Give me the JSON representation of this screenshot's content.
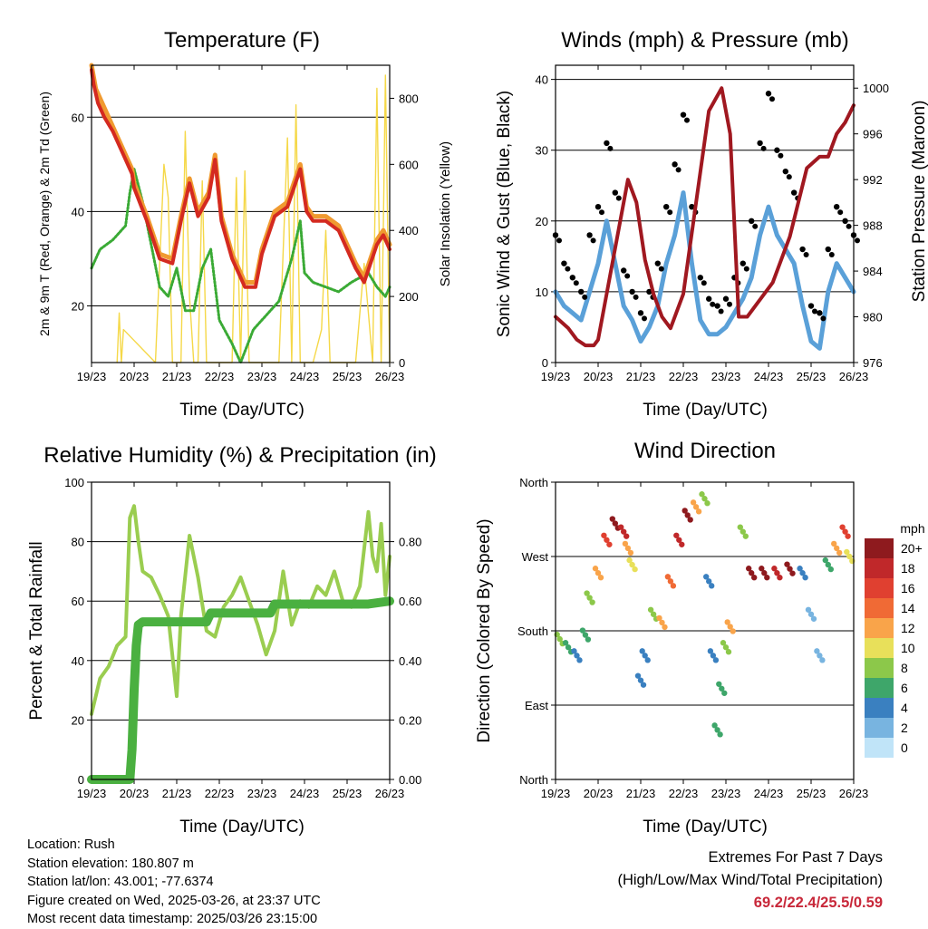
{
  "colors": {
    "temp2m": "#d42a20",
    "temp9m": "#f09a30",
    "dewpoint": "#3aaa35",
    "solar": "#f5d848",
    "wind": "#5aa0d8",
    "gust": "#000000",
    "pressure": "#a01820",
    "rh": "#9acd50",
    "precip": "#4ab040",
    "extremes": "#c8283a"
  },
  "charts": {
    "temperature": {
      "title": "Temperature (F)",
      "xlabel": "Time (Day/UTC)",
      "ylabel": "2m & 9m T (Red, Orange) & 2m Td (Green)",
      "ylabel_right": "Solar Insolation (Yellow)"
    },
    "winds": {
      "title": "Winds (mph) & Pressure (mb)",
      "xlabel": "Time (Day/UTC)",
      "ylabel": "Sonic Wind & Gust (Blue, Black)",
      "ylabel_right": "Station Pressure (Maroon)"
    },
    "humidity": {
      "title": "Relative Humidity (%) & Precipitation (in)",
      "xlabel": "Time (Day/UTC)",
      "ylabel": "Percent & Total Rainfall"
    },
    "direction": {
      "title": "Wind Direction",
      "xlabel": "Time (Day/UTC)",
      "ylabel": "Direction (Colored By Speed)",
      "colorbar_title": "mph"
    }
  },
  "chart_data": [
    {
      "type": "line",
      "x_ticks": [
        "19/23",
        "20/23",
        "21/23",
        "22/23",
        "23/23",
        "24/23",
        "25/23",
        "26/23"
      ],
      "ylim": [
        8,
        71
      ],
      "y_ticks": [
        20,
        40,
        60
      ],
      "ylim_right": [
        0,
        900
      ],
      "y_ticks_right": [
        0,
        200,
        400,
        600,
        800
      ],
      "grid": true,
      "series": [
        {
          "x": [
            0,
            0.05,
            0.15,
            0.3,
            0.5,
            0.7,
            0.95,
            1.0,
            1.3,
            1.6,
            1.9,
            2.1,
            2.3,
            2.5,
            2.75,
            2.9,
            3.05,
            3.3,
            3.6,
            3.85,
            4.0,
            4.3,
            4.6,
            4.9,
            5.05,
            5.2,
            5.5,
            5.8,
            6.05,
            6.2,
            6.4,
            6.7,
            6.85,
            7.0
          ],
          "y": [
            70,
            67,
            63,
            60,
            57,
            53,
            48,
            45,
            38,
            30,
            29,
            38,
            46,
            39,
            43,
            51,
            38,
            30,
            24,
            24,
            31,
            39,
            41,
            49,
            40,
            38,
            38,
            36,
            31,
            28,
            25,
            33,
            35,
            32
          ]
        },
        {
          "x": [
            0,
            0.1,
            0.3,
            0.6,
            0.95,
            1.0,
            1.3,
            1.6,
            1.9,
            2.1,
            2.3,
            2.5,
            2.75,
            2.9,
            3.05,
            3.3,
            3.6,
            3.85,
            4.0,
            4.3,
            4.6,
            4.9,
            5.05,
            5.2,
            5.5,
            5.8,
            6.05,
            6.2,
            6.4,
            6.7,
            6.85,
            7.0
          ],
          "y": [
            71,
            66,
            62,
            56,
            49,
            46,
            39,
            31,
            30,
            39,
            47,
            40,
            44,
            52,
            39,
            31,
            25,
            25,
            32,
            40,
            42,
            50,
            41,
            39,
            39,
            37,
            32,
            29,
            26,
            34,
            36,
            33
          ]
        },
        {
          "x": [
            0,
            0.2,
            0.5,
            0.8,
            0.9,
            1.0,
            1.2,
            1.4,
            1.6,
            1.8,
            2.0,
            2.2,
            2.4,
            2.6,
            2.8,
            3.0,
            3.3,
            3.5,
            3.8,
            4.1,
            4.4,
            4.7,
            4.9,
            5.0,
            5.2,
            5.5,
            5.8,
            6.1,
            6.3,
            6.5,
            6.7,
            6.9,
            7.0
          ],
          "y": [
            28,
            32,
            34,
            37,
            44,
            49,
            42,
            33,
            24,
            22,
            28,
            19,
            19,
            28,
            32,
            17,
            12,
            8,
            15,
            18,
            21,
            30,
            38,
            27,
            25,
            24,
            23,
            25,
            26,
            27,
            24,
            22,
            24
          ]
        },
        {
          "x": [
            0.6,
            0.65,
            0.7,
            0.75,
            1.5,
            1.7,
            1.8,
            1.9,
            2.1,
            2.2,
            2.3,
            2.4,
            2.5,
            2.6,
            2.7,
            3.0,
            3.3,
            3.4,
            3.5,
            3.6,
            3.7,
            4.0,
            4.4,
            4.6,
            4.7,
            4.8,
            4.9,
            5.2,
            5.4,
            5.5,
            5.6,
            5.8,
            6.2,
            6.4,
            6.6,
            6.7,
            6.8,
            6.85,
            6.9,
            7.0
          ],
          "y": [
            0,
            150,
            0,
            100,
            0,
            600,
            500,
            0,
            0,
            700,
            200,
            0,
            0,
            550,
            0,
            0,
            0,
            560,
            0,
            580,
            0,
            0,
            0,
            680,
            0,
            780,
            0,
            0,
            100,
            400,
            0,
            0,
            0,
            300,
            0,
            830,
            0,
            400,
            870,
            0
          ]
        }
      ]
    },
    {
      "type": "line",
      "x_ticks": [
        "19/23",
        "20/23",
        "21/23",
        "22/23",
        "23/23",
        "24/23",
        "25/23",
        "26/23"
      ],
      "ylim": [
        0,
        42
      ],
      "y_ticks": [
        0,
        10,
        20,
        30,
        40
      ],
      "ylim_right": [
        976,
        1002
      ],
      "y_ticks_right": [
        976,
        980,
        984,
        988,
        992,
        996,
        1000
      ],
      "grid": true,
      "series": [
        {
          "x": [
            0,
            0.2,
            0.4,
            0.6,
            0.8,
            1.0,
            1.2,
            1.4,
            1.6,
            1.8,
            2.0,
            2.2,
            2.4,
            2.6,
            2.8,
            3.0,
            3.2,
            3.4,
            3.6,
            3.8,
            4.0,
            4.2,
            4.4,
            4.6,
            4.8,
            5.0,
            5.2,
            5.4,
            5.6,
            5.8,
            6.0,
            6.2,
            6.4,
            6.6,
            6.8,
            7.0
          ],
          "y": [
            10,
            8,
            7,
            6,
            10,
            14,
            20,
            14,
            8,
            6,
            3,
            5,
            8,
            14,
            18,
            24,
            14,
            6,
            4,
            4,
            5,
            7,
            9,
            12,
            18,
            22,
            18,
            16,
            14,
            8,
            3,
            2,
            10,
            14,
            12,
            10
          ]
        },
        {
          "x": [
            0,
            0.2,
            0.4,
            0.6,
            0.8,
            1.0,
            1.2,
            1.4,
            1.6,
            1.8,
            2.0,
            2.2,
            2.4,
            2.6,
            2.8,
            3.0,
            3.2,
            3.4,
            3.6,
            3.8,
            4.0,
            4.2,
            4.4,
            4.6,
            4.8,
            5.0,
            5.2,
            5.4,
            5.6,
            5.8,
            6.0,
            6.2,
            6.4,
            6.6,
            6.8,
            7.0
          ],
          "y": [
            18,
            14,
            12,
            10,
            18,
            22,
            31,
            24,
            13,
            10,
            7,
            10,
            14,
            22,
            28,
            35,
            22,
            12,
            9,
            8,
            9,
            12,
            14,
            20,
            31,
            38,
            30,
            27,
            24,
            16,
            8,
            7,
            16,
            22,
            20,
            18
          ]
        },
        {
          "x": [
            0,
            0.3,
            0.5,
            0.7,
            0.9,
            1.0,
            1.2,
            1.5,
            1.7,
            1.9,
            2.1,
            2.3,
            2.5,
            2.7,
            3.0,
            3.3,
            3.6,
            3.9,
            4.1,
            4.3,
            4.5,
            4.7,
            4.9,
            5.1,
            5.3,
            5.5,
            5.7,
            5.9,
            6.2,
            6.4,
            6.6,
            6.8,
            7.0
          ],
          "y": [
            980,
            979,
            978,
            977.5,
            977.5,
            978,
            982,
            988,
            992,
            990,
            985,
            982,
            980,
            979,
            982,
            990,
            998,
            1000,
            996,
            980,
            980,
            981,
            982,
            983,
            985,
            987,
            990,
            993,
            994,
            994,
            996,
            997,
            998.5
          ]
        }
      ]
    },
    {
      "type": "line",
      "x_ticks": [
        "19/23",
        "20/23",
        "21/23",
        "22/23",
        "23/23",
        "24/23",
        "25/23",
        "26/23"
      ],
      "ylim": [
        0,
        100
      ],
      "y_ticks": [
        0,
        20,
        40,
        60,
        80,
        100
      ],
      "ylim_right": [
        0,
        1.0
      ],
      "y_ticks_right": [
        "0.00",
        "0.20",
        "0.40",
        "0.60",
        "0.80"
      ],
      "grid": true,
      "series": [
        {
          "x": [
            0,
            0.2,
            0.4,
            0.6,
            0.8,
            0.9,
            1.0,
            1.1,
            1.2,
            1.4,
            1.6,
            1.8,
            2.0,
            2.1,
            2.3,
            2.5,
            2.7,
            2.9,
            3.1,
            3.3,
            3.5,
            3.7,
            3.9,
            4.1,
            4.3,
            4.5,
            4.7,
            4.9,
            5.1,
            5.3,
            5.5,
            5.7,
            5.9,
            6.1,
            6.3,
            6.5,
            6.6,
            6.7,
            6.8,
            6.9,
            7.0
          ],
          "y": [
            22,
            34,
            38,
            45,
            48,
            88,
            92,
            80,
            70,
            68,
            62,
            55,
            28,
            55,
            82,
            68,
            50,
            48,
            58,
            62,
            68,
            60,
            52,
            42,
            50,
            70,
            52,
            60,
            58,
            65,
            62,
            70,
            60,
            58,
            65,
            90,
            75,
            70,
            86,
            62,
            75
          ]
        },
        {
          "x": [
            0,
            0.9,
            0.95,
            1.0,
            1.05,
            1.1,
            1.2,
            1.5,
            2.0,
            2.5,
            2.7,
            2.8,
            3.0,
            3.5,
            4.0,
            4.2,
            4.3,
            4.5,
            5.0,
            5.5,
            6.0,
            6.5,
            7.0
          ],
          "y": [
            0,
            0,
            0.1,
            0.3,
            0.45,
            0.52,
            0.53,
            0.53,
            0.53,
            0.53,
            0.53,
            0.56,
            0.56,
            0.56,
            0.56,
            0.56,
            0.59,
            0.59,
            0.59,
            0.59,
            0.59,
            0.59,
            0.6
          ]
        }
      ]
    },
    {
      "type": "scatter",
      "x_ticks": [
        "19/23",
        "20/23",
        "21/23",
        "22/23",
        "23/23",
        "24/23",
        "25/23",
        "26/23"
      ],
      "y_ticks": [
        "North",
        "East",
        "South",
        "West",
        "North"
      ],
      "ylim": [
        0,
        360
      ],
      "colorbar": {
        "title": "mph",
        "labels": [
          "20+",
          "18",
          "16",
          "14",
          "12",
          "10",
          "8",
          "6",
          "4",
          "2",
          "0"
        ],
        "colors": [
          "#8e1a1e",
          "#c0282a",
          "#e04030",
          "#f06a35",
          "#f9a44a",
          "#e8e05a",
          "#8cc84a",
          "#3ea66a",
          "#3a80c0",
          "#78b4e0",
          "#c0e4f8"
        ]
      },
      "points": [
        {
          "x": 0.1,
          "y": 170,
          "s": 8
        },
        {
          "x": 0.3,
          "y": 160,
          "s": 6
        },
        {
          "x": 0.5,
          "y": 150,
          "s": 4
        },
        {
          "x": 0.7,
          "y": 175,
          "s": 6
        },
        {
          "x": 0.8,
          "y": 220,
          "s": 8
        },
        {
          "x": 1.0,
          "y": 250,
          "s": 12
        },
        {
          "x": 1.2,
          "y": 290,
          "s": 16
        },
        {
          "x": 1.4,
          "y": 310,
          "s": 20
        },
        {
          "x": 1.6,
          "y": 300,
          "s": 18
        },
        {
          "x": 1.7,
          "y": 280,
          "s": 12
        },
        {
          "x": 1.8,
          "y": 260,
          "s": 10
        },
        {
          "x": 2.0,
          "y": 120,
          "s": 4
        },
        {
          "x": 2.1,
          "y": 150,
          "s": 4
        },
        {
          "x": 2.3,
          "y": 200,
          "s": 8
        },
        {
          "x": 2.5,
          "y": 190,
          "s": 12
        },
        {
          "x": 2.7,
          "y": 240,
          "s": 14
        },
        {
          "x": 2.9,
          "y": 290,
          "s": 18
        },
        {
          "x": 3.1,
          "y": 320,
          "s": 20
        },
        {
          "x": 3.3,
          "y": 330,
          "s": 12
        },
        {
          "x": 3.5,
          "y": 340,
          "s": 8
        },
        {
          "x": 3.6,
          "y": 240,
          "s": 4
        },
        {
          "x": 3.7,
          "y": 150,
          "s": 4
        },
        {
          "x": 3.8,
          "y": 60,
          "s": 6
        },
        {
          "x": 3.9,
          "y": 110,
          "s": 6
        },
        {
          "x": 4.0,
          "y": 160,
          "s": 8
        },
        {
          "x": 4.1,
          "y": 185,
          "s": 12
        },
        {
          "x": 4.4,
          "y": 300,
          "s": 8
        },
        {
          "x": 4.6,
          "y": 250,
          "s": 20
        },
        {
          "x": 4.9,
          "y": 250,
          "s": 20
        },
        {
          "x": 5.2,
          "y": 250,
          "s": 18
        },
        {
          "x": 5.5,
          "y": 255,
          "s": 20
        },
        {
          "x": 5.8,
          "y": 250,
          "s": 4
        },
        {
          "x": 6.0,
          "y": 200,
          "s": 2
        },
        {
          "x": 6.2,
          "y": 150,
          "s": 2
        },
        {
          "x": 6.4,
          "y": 260,
          "s": 6
        },
        {
          "x": 6.6,
          "y": 280,
          "s": 12
        },
        {
          "x": 6.8,
          "y": 300,
          "s": 16
        },
        {
          "x": 6.9,
          "y": 270,
          "s": 10
        }
      ]
    }
  ],
  "info": {
    "location": "Location: Rush",
    "elevation": "Station elevation: 180.807 m",
    "latlon": "Station lat/lon: 43.001; -77.6374",
    "created": "Figure created on Wed, 2025-03-26, at 23:37 UTC",
    "recent": "Most recent data timestamp: 2025/03/26 23:15:00"
  },
  "extremes": {
    "line1": "Extremes For Past 7 Days",
    "line2": "(High/Low/Max Wind/Total Precipitation)",
    "values": "69.2/22.4/25.5/0.59"
  }
}
